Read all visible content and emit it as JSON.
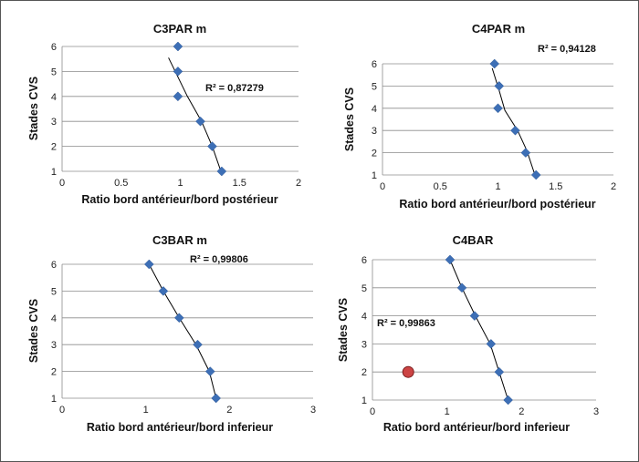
{
  "chart_data": [
    {
      "type": "scatter",
      "title": "C3PAR m",
      "xlabel": "Ratio bord antérieur/bord postérieur",
      "ylabel": "Stades CVS",
      "xlim": [
        0,
        2
      ],
      "ylim": [
        1,
        6
      ],
      "xticks": [
        "0",
        "0.5",
        "1",
        "1.5",
        "2"
      ],
      "yticks": [
        "1",
        "2",
        "3",
        "4",
        "5",
        "6"
      ],
      "grid": "horizontal",
      "points": [
        {
          "x": 0.98,
          "y": 6
        },
        {
          "x": 0.98,
          "y": 5
        },
        {
          "x": 0.98,
          "y": 4
        },
        {
          "x": 1.17,
          "y": 3
        },
        {
          "x": 1.27,
          "y": 2
        },
        {
          "x": 1.35,
          "y": 1
        }
      ],
      "trendline": [
        [
          0.9,
          5.55
        ],
        [
          1.06,
          4.0
        ],
        [
          1.18,
          3.0
        ],
        [
          1.27,
          2.0
        ],
        [
          1.34,
          1.05
        ]
      ],
      "r2_label": "R² = 0,87279"
    },
    {
      "type": "scatter",
      "title": "C4PAR m",
      "xlabel": "Ratio bord antérieur/bord postérieur",
      "ylabel": "Stades CVS",
      "xlim": [
        0,
        2
      ],
      "ylim": [
        1,
        6
      ],
      "xticks": [
        "0",
        "0.5",
        "1",
        "1.5",
        "2"
      ],
      "yticks": [
        "1",
        "2",
        "3",
        "4",
        "5",
        "6"
      ],
      "grid": "horizontal",
      "points": [
        {
          "x": 0.97,
          "y": 6
        },
        {
          "x": 1.01,
          "y": 5
        },
        {
          "x": 1.0,
          "y": 4
        },
        {
          "x": 1.15,
          "y": 3
        },
        {
          "x": 1.24,
          "y": 2
        },
        {
          "x": 1.33,
          "y": 1
        }
      ],
      "trendline": [
        [
          0.95,
          5.8
        ],
        [
          1.01,
          4.8
        ],
        [
          1.06,
          3.9
        ],
        [
          1.17,
          3.0
        ],
        [
          1.25,
          2.1
        ],
        [
          1.32,
          1.0
        ]
      ],
      "r2_label": "R² = 0,94128"
    },
    {
      "type": "scatter",
      "title": "C3BAR m",
      "xlabel": "Ratio bord antérieur/bord inferieur",
      "ylabel": "Stades CVS",
      "xlim": [
        0,
        3
      ],
      "ylim": [
        1,
        6
      ],
      "xticks": [
        "0",
        "1",
        "2",
        "3"
      ],
      "yticks": [
        "1",
        "2",
        "3",
        "4",
        "5",
        "6"
      ],
      "grid": "horizontal",
      "points": [
        {
          "x": 1.04,
          "y": 6
        },
        {
          "x": 1.21,
          "y": 5
        },
        {
          "x": 1.4,
          "y": 4
        },
        {
          "x": 1.62,
          "y": 3
        },
        {
          "x": 1.77,
          "y": 2
        },
        {
          "x": 1.84,
          "y": 1
        }
      ],
      "trendline": [
        [
          1.04,
          6.0
        ],
        [
          1.21,
          5.0
        ],
        [
          1.4,
          4.0
        ],
        [
          1.6,
          3.0
        ],
        [
          1.76,
          2.0
        ],
        [
          1.84,
          1.0
        ]
      ],
      "r2_label": "R² = 0,99806"
    },
    {
      "type": "scatter",
      "title": "C4BAR",
      "xlabel": "Ratio bord antérieur/bord inferieur",
      "ylabel": "Stades CVS",
      "xlim": [
        0,
        3
      ],
      "ylim": [
        1,
        6
      ],
      "xticks": [
        "0",
        "1",
        "2",
        "3"
      ],
      "yticks": [
        "1",
        "2",
        "3",
        "4",
        "5",
        "6"
      ],
      "grid": "horizontal",
      "points": [
        {
          "x": 1.04,
          "y": 6
        },
        {
          "x": 1.2,
          "y": 5
        },
        {
          "x": 1.37,
          "y": 4
        },
        {
          "x": 1.59,
          "y": 3
        },
        {
          "x": 1.7,
          "y": 2
        },
        {
          "x": 1.82,
          "y": 1
        }
      ],
      "trendline": [
        [
          1.04,
          6.0
        ],
        [
          1.2,
          5.0
        ],
        [
          1.38,
          4.0
        ],
        [
          1.58,
          3.0
        ],
        [
          1.7,
          2.0
        ],
        [
          1.82,
          1.0
        ]
      ],
      "outliers": [
        {
          "x": 0.48,
          "y": 2,
          "color": "#cc4444"
        }
      ],
      "r2_label": "R² = 0,99863"
    }
  ],
  "colors": {
    "marker": "#3d6fb6",
    "outlier": "#cc4444",
    "grid": "#8c8c8c"
  }
}
